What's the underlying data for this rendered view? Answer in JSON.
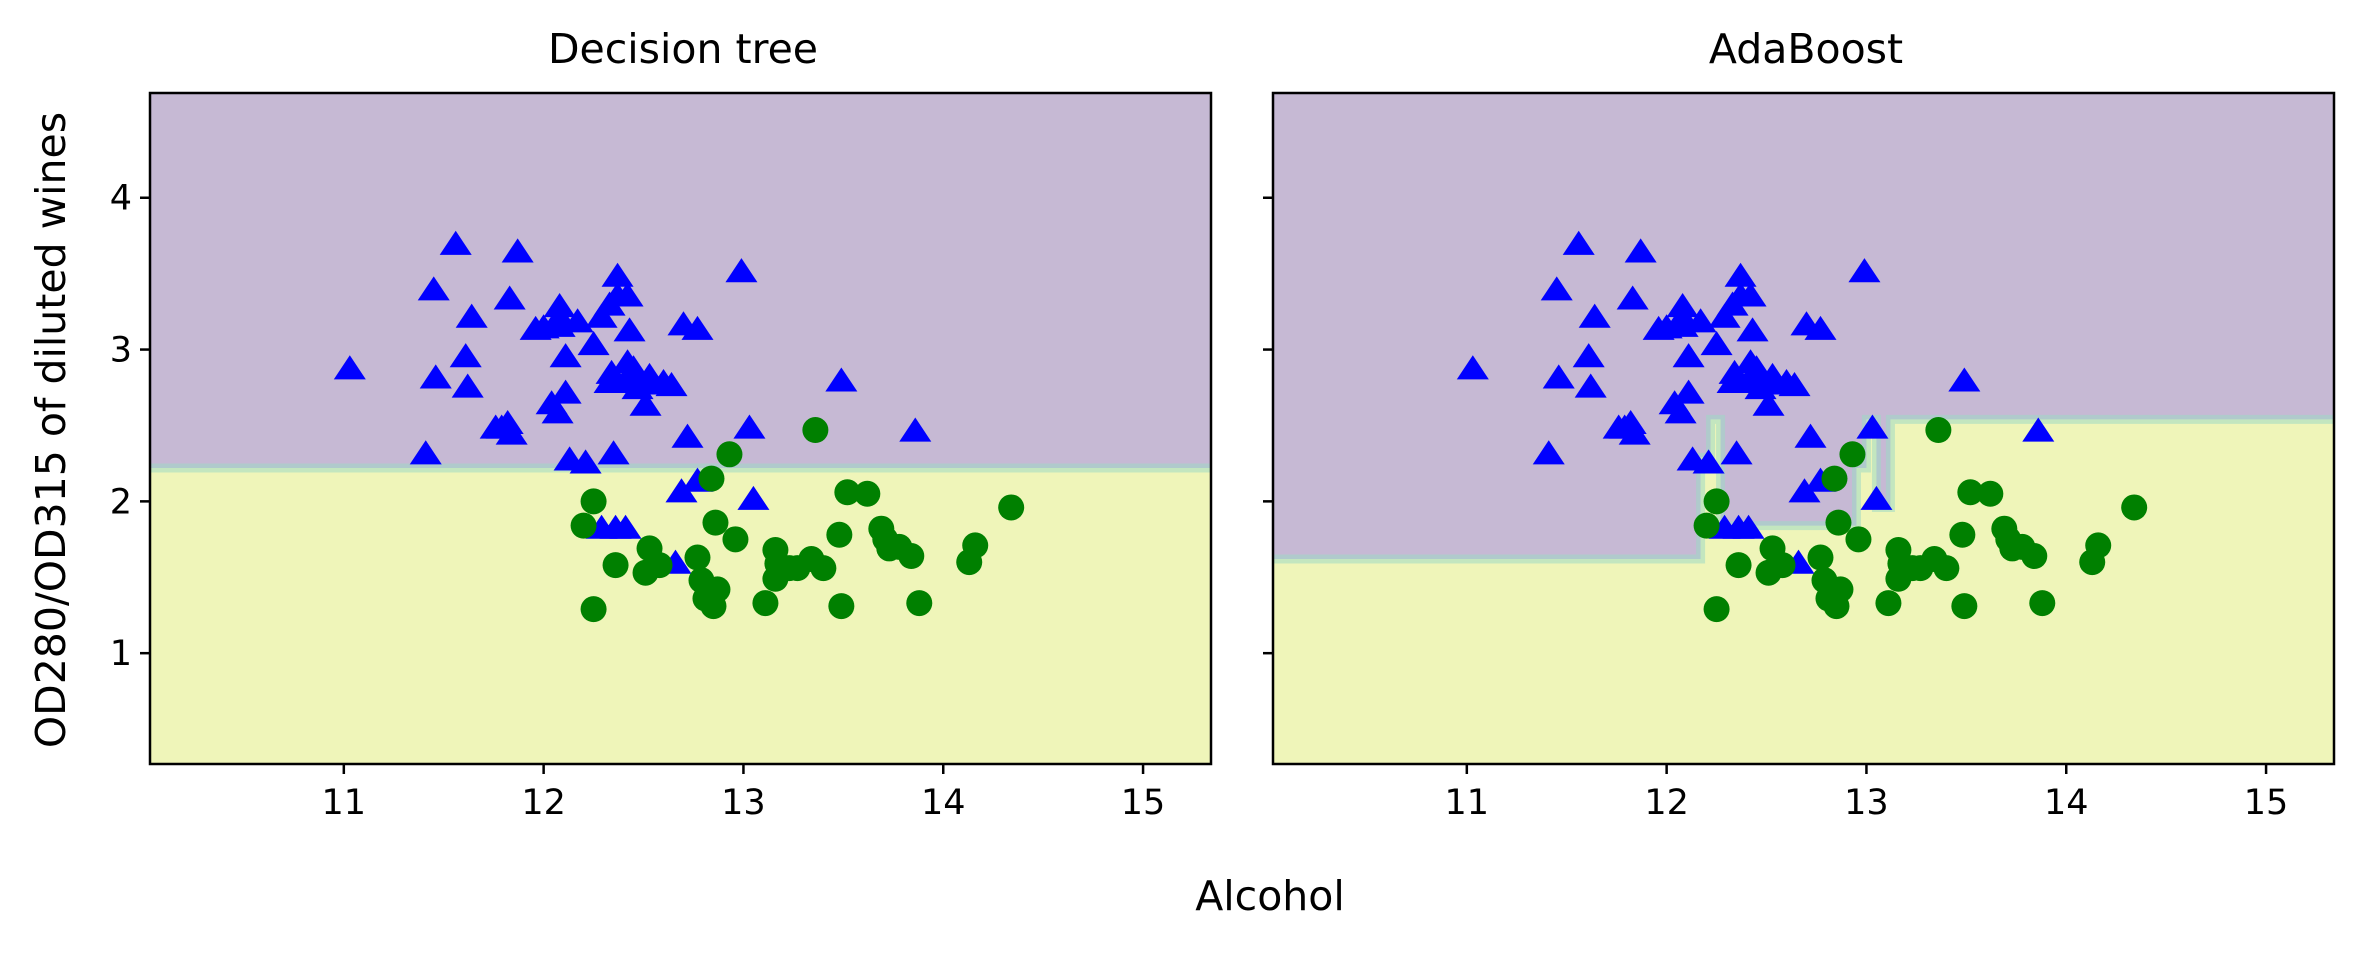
{
  "figure": {
    "xlabel": "Alcohol",
    "ylabel": "OD280/OD315 of diluted wines"
  },
  "colors": {
    "region_high": "#c6b9d4",
    "region_low": "#eff5b9",
    "boundary": "#9fd8c4",
    "class1_marker": "#0000ff",
    "class2_marker": "#008000"
  },
  "chart_data": [
    {
      "type": "scatter",
      "title": "Decision tree",
      "xlim": [
        10.03,
        15.34
      ],
      "ylim": [
        0.27,
        4.69
      ],
      "xticks": [
        11,
        12,
        13,
        14,
        15
      ],
      "yticks": [
        1,
        2,
        3,
        4
      ],
      "decision_boundary": [
        [
          10.03,
          2.22
        ],
        [
          15.34,
          2.22
        ]
      ],
      "series": [
        {
          "marker": "triangle",
          "color": "#0000ff",
          "points": [
            [
              11.03,
              2.87
            ],
            [
              11.41,
              2.31
            ],
            [
              11.45,
              3.39
            ],
            [
              11.46,
              2.81
            ],
            [
              11.56,
              3.69
            ],
            [
              11.61,
              2.95
            ],
            [
              11.62,
              2.75
            ],
            [
              11.64,
              3.21
            ],
            [
              11.76,
              2.48
            ],
            [
              11.79,
              2.48
            ],
            [
              11.82,
              2.51
            ],
            [
              11.83,
              3.33
            ],
            [
              11.84,
              2.44
            ],
            [
              11.87,
              3.64
            ],
            [
              11.96,
              3.13
            ],
            [
              12.0,
              3.14
            ],
            [
              12.04,
              2.64
            ],
            [
              12.07,
              2.58
            ],
            [
              12.08,
              3.21
            ],
            [
              12.08,
              3.28
            ],
            [
              12.08,
              3.15
            ],
            [
              12.11,
              2.71
            ],
            [
              12.11,
              2.95
            ],
            [
              12.13,
              2.27
            ],
            [
              12.17,
              3.18
            ],
            [
              12.21,
              2.25
            ],
            [
              12.25,
              3.03
            ],
            [
              12.29,
              3.21
            ],
            [
              12.33,
              3.29
            ],
            [
              12.33,
              2.78
            ],
            [
              12.34,
              2.84
            ],
            [
              12.35,
              2.31
            ],
            [
              12.36,
              1.82
            ],
            [
              12.37,
              3.35
            ],
            [
              12.37,
              2.78
            ],
            [
              12.37,
              3.48
            ],
            [
              12.42,
              2.91
            ],
            [
              12.42,
              3.35
            ],
            [
              12.43,
              3.12
            ],
            [
              12.43,
              2.78
            ],
            [
              12.45,
              2.87
            ],
            [
              12.47,
              2.74
            ],
            [
              12.51,
              2.63
            ],
            [
              12.52,
              2.77
            ],
            [
              12.53,
              2.82
            ],
            [
              12.6,
              2.78
            ],
            [
              12.64,
              2.76
            ],
            [
              12.66,
              1.59
            ],
            [
              12.69,
              2.06
            ],
            [
              12.7,
              3.16
            ],
            [
              12.72,
              2.42
            ],
            [
              12.77,
              3.13
            ],
            [
              12.77,
              2.13
            ],
            [
              12.99,
              3.51
            ],
            [
              13.03,
              2.48
            ],
            [
              13.05,
              2.01
            ],
            [
              13.49,
              2.79
            ],
            [
              13.86,
              2.46
            ],
            [
              12.29,
              1.82
            ],
            [
              12.41,
              1.82
            ]
          ]
        },
        {
          "marker": "circle",
          "color": "#008000",
          "points": [
            [
              12.2,
              1.84
            ],
            [
              12.25,
              1.29
            ],
            [
              12.25,
              2.0
            ],
            [
              12.36,
              1.58
            ],
            [
              12.51,
              1.53
            ],
            [
              12.53,
              1.69
            ],
            [
              12.58,
              1.58
            ],
            [
              12.77,
              1.63
            ],
            [
              12.79,
              1.48
            ],
            [
              12.81,
              1.36
            ],
            [
              12.82,
              1.41
            ],
            [
              12.84,
              2.15
            ],
            [
              12.85,
              1.31
            ],
            [
              12.86,
              1.86
            ],
            [
              12.87,
              1.42
            ],
            [
              12.93,
              2.31
            ],
            [
              12.96,
              1.75
            ],
            [
              13.11,
              1.33
            ],
            [
              13.16,
              1.68
            ],
            [
              13.16,
              1.49
            ],
            [
              13.17,
              1.59
            ],
            [
              13.23,
              1.56
            ],
            [
              13.27,
              1.56
            ],
            [
              13.34,
              1.62
            ],
            [
              13.36,
              2.47
            ],
            [
              13.4,
              1.56
            ],
            [
              13.48,
              1.78
            ],
            [
              13.49,
              1.31
            ],
            [
              13.52,
              2.06
            ],
            [
              13.62,
              2.05
            ],
            [
              13.69,
              1.82
            ],
            [
              13.71,
              1.75
            ],
            [
              13.73,
              1.69
            ],
            [
              13.78,
              1.7
            ],
            [
              13.84,
              1.64
            ],
            [
              13.88,
              1.33
            ],
            [
              14.13,
              1.6
            ],
            [
              14.16,
              1.71
            ],
            [
              14.34,
              1.96
            ]
          ]
        }
      ]
    },
    {
      "type": "scatter",
      "title": "AdaBoost",
      "xlim": [
        10.03,
        15.34
      ],
      "ylim": [
        0.27,
        4.69
      ],
      "xticks": [
        11,
        12,
        13,
        14,
        15
      ],
      "yticks": [
        1,
        2,
        3,
        4
      ],
      "decision_boundary": [
        [
          10.03,
          1.62
        ],
        [
          12.17,
          1.62
        ],
        [
          12.17,
          2.29
        ],
        [
          12.22,
          2.29
        ],
        [
          12.22,
          2.54
        ],
        [
          12.27,
          2.54
        ],
        [
          12.27,
          1.84
        ],
        [
          12.95,
          1.84
        ],
        [
          12.95,
          2.22
        ],
        [
          13.0,
          2.22
        ],
        [
          13.0,
          2.54
        ],
        [
          13.05,
          2.54
        ],
        [
          13.05,
          1.96
        ],
        [
          13.12,
          1.96
        ],
        [
          13.12,
          2.54
        ],
        [
          15.34,
          2.54
        ]
      ],
      "series": [
        {
          "marker": "triangle",
          "color": "#0000ff",
          "points": [
            [
              11.03,
              2.87
            ],
            [
              11.41,
              2.31
            ],
            [
              11.45,
              3.39
            ],
            [
              11.46,
              2.81
            ],
            [
              11.56,
              3.69
            ],
            [
              11.61,
              2.95
            ],
            [
              11.62,
              2.75
            ],
            [
              11.64,
              3.21
            ],
            [
              11.76,
              2.48
            ],
            [
              11.79,
              2.48
            ],
            [
              11.82,
              2.51
            ],
            [
              11.83,
              3.33
            ],
            [
              11.84,
              2.44
            ],
            [
              11.87,
              3.64
            ],
            [
              11.96,
              3.13
            ],
            [
              12.0,
              3.14
            ],
            [
              12.04,
              2.64
            ],
            [
              12.07,
              2.58
            ],
            [
              12.08,
              3.21
            ],
            [
              12.08,
              3.28
            ],
            [
              12.08,
              3.15
            ],
            [
              12.11,
              2.71
            ],
            [
              12.11,
              2.95
            ],
            [
              12.13,
              2.27
            ],
            [
              12.17,
              3.18
            ],
            [
              12.21,
              2.25
            ],
            [
              12.25,
              3.03
            ],
            [
              12.29,
              3.21
            ],
            [
              12.33,
              3.29
            ],
            [
              12.33,
              2.78
            ],
            [
              12.34,
              2.84
            ],
            [
              12.35,
              2.31
            ],
            [
              12.36,
              1.82
            ],
            [
              12.37,
              3.35
            ],
            [
              12.37,
              2.78
            ],
            [
              12.37,
              3.48
            ],
            [
              12.42,
              2.91
            ],
            [
              12.42,
              3.35
            ],
            [
              12.43,
              3.12
            ],
            [
              12.43,
              2.78
            ],
            [
              12.45,
              2.87
            ],
            [
              12.47,
              2.74
            ],
            [
              12.51,
              2.63
            ],
            [
              12.52,
              2.77
            ],
            [
              12.53,
              2.82
            ],
            [
              12.6,
              2.78
            ],
            [
              12.64,
              2.76
            ],
            [
              12.66,
              1.59
            ],
            [
              12.69,
              2.06
            ],
            [
              12.7,
              3.16
            ],
            [
              12.72,
              2.42
            ],
            [
              12.77,
              3.13
            ],
            [
              12.77,
              2.13
            ],
            [
              12.99,
              3.51
            ],
            [
              13.03,
              2.48
            ],
            [
              13.05,
              2.01
            ],
            [
              13.49,
              2.79
            ],
            [
              13.86,
              2.46
            ],
            [
              12.29,
              1.82
            ],
            [
              12.41,
              1.82
            ]
          ]
        },
        {
          "marker": "circle",
          "color": "#008000",
          "points": [
            [
              12.2,
              1.84
            ],
            [
              12.25,
              1.29
            ],
            [
              12.25,
              2.0
            ],
            [
              12.36,
              1.58
            ],
            [
              12.51,
              1.53
            ],
            [
              12.53,
              1.69
            ],
            [
              12.58,
              1.58
            ],
            [
              12.77,
              1.63
            ],
            [
              12.79,
              1.48
            ],
            [
              12.81,
              1.36
            ],
            [
              12.82,
              1.41
            ],
            [
              12.84,
              2.15
            ],
            [
              12.85,
              1.31
            ],
            [
              12.86,
              1.86
            ],
            [
              12.87,
              1.42
            ],
            [
              12.93,
              2.31
            ],
            [
              12.96,
              1.75
            ],
            [
              13.11,
              1.33
            ],
            [
              13.16,
              1.68
            ],
            [
              13.16,
              1.49
            ],
            [
              13.17,
              1.59
            ],
            [
              13.23,
              1.56
            ],
            [
              13.27,
              1.56
            ],
            [
              13.34,
              1.62
            ],
            [
              13.36,
              2.47
            ],
            [
              13.4,
              1.56
            ],
            [
              13.48,
              1.78
            ],
            [
              13.49,
              1.31
            ],
            [
              13.52,
              2.06
            ],
            [
              13.62,
              2.05
            ],
            [
              13.69,
              1.82
            ],
            [
              13.71,
              1.75
            ],
            [
              13.73,
              1.69
            ],
            [
              13.78,
              1.7
            ],
            [
              13.84,
              1.64
            ],
            [
              13.88,
              1.33
            ],
            [
              14.13,
              1.6
            ],
            [
              14.16,
              1.71
            ],
            [
              14.34,
              1.96
            ]
          ]
        }
      ]
    }
  ]
}
